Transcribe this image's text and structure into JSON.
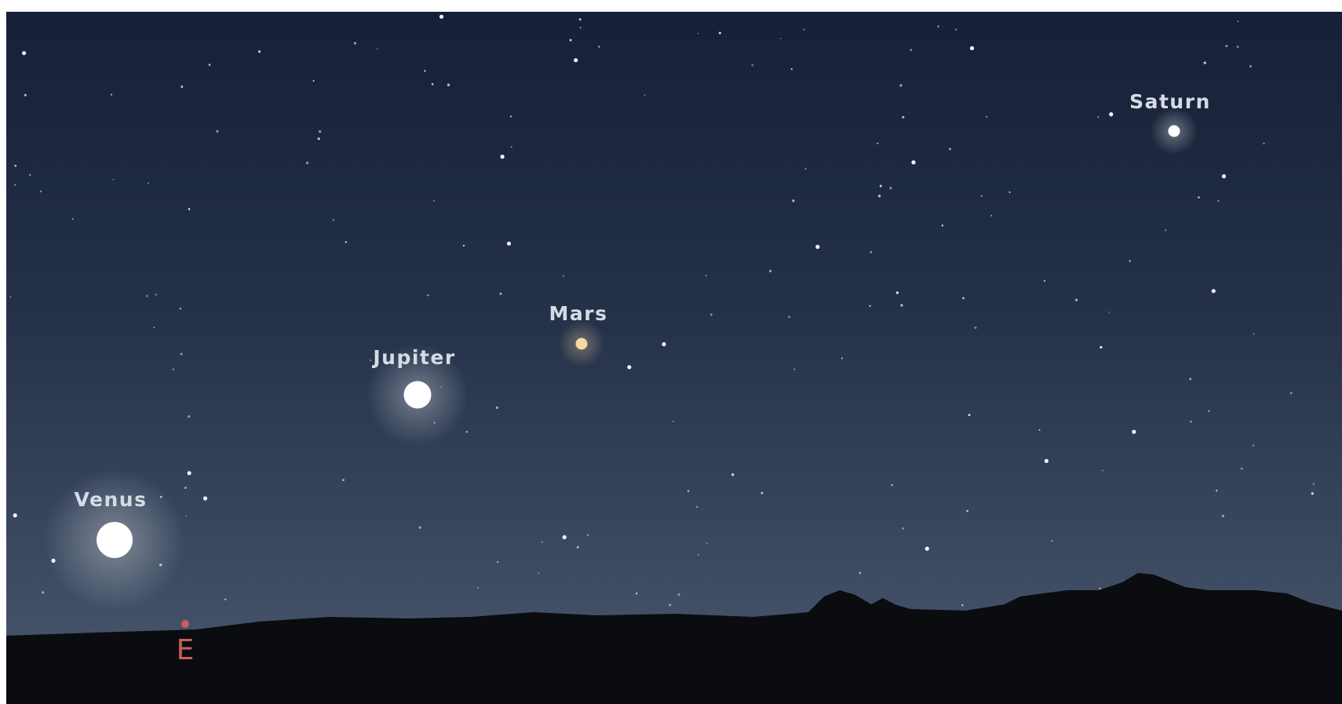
{
  "planets": [
    {
      "label": "Saturn"
    },
    {
      "label": "Mars"
    },
    {
      "label": "Jupiter"
    },
    {
      "label": "Venus"
    }
  ],
  "compass": {
    "label": "E"
  }
}
